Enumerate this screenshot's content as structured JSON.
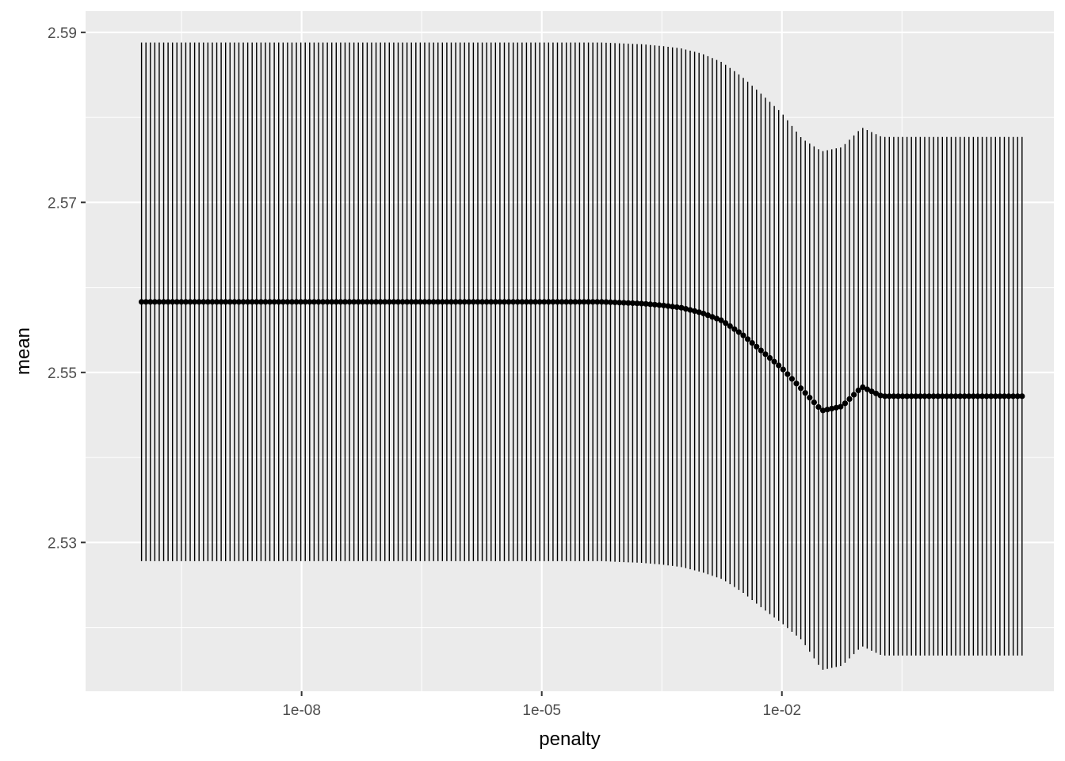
{
  "chart_data": {
    "type": "scatter",
    "title": "",
    "xlabel": "penalty",
    "ylabel": "mean",
    "x_scale": "log10",
    "xlim": [
      2e-11,
      25
    ],
    "ylim": [
      2.5125,
      2.5925
    ],
    "x_ticks": [
      {
        "value": 1e-08,
        "label": "1e-08"
      },
      {
        "value": 1e-05,
        "label": "1e-05"
      },
      {
        "value": 0.01,
        "label": "1e-02"
      }
    ],
    "y_ticks": [
      {
        "value": 2.53,
        "label": "2.53"
      },
      {
        "value": 2.55,
        "label": "2.55"
      },
      {
        "value": 2.57,
        "label": "2.57"
      },
      {
        "value": 2.59,
        "label": "2.59"
      }
    ],
    "grid": true,
    "point_color": "#000000",
    "errorbar_color": "#000000",
    "panel_background": "#ebebeb",
    "grid_color": "#ffffff",
    "series": [
      {
        "penalty": [
          1e-10,
          1.78e-10,
          3.16e-10,
          5.62e-10,
          1e-09,
          1.78e-09,
          3.16e-09,
          5.62e-09,
          1e-08,
          1.78e-08,
          3.16e-08,
          5.62e-08,
          1e-07,
          1.78e-07,
          3.16e-07,
          5.62e-07,
          1e-06,
          1.78e-06,
          3.16e-06,
          5.62e-06,
          1e-05,
          1.78e-05,
          3.16e-05,
          5.62e-05,
          0.0001,
          0.000178,
          0.000316,
          0.000562,
          0.001,
          0.00178,
          0.00316,
          0.00562,
          0.01,
          0.0178,
          0.0316,
          0.0562,
          0.1,
          0.178,
          0.316,
          0.562,
          1,
          1.78,
          3.16,
          5.62,
          10
        ],
        "mean": [
          2.5583,
          2.5583,
          2.5583,
          2.5583,
          2.5583,
          2.5583,
          2.5583,
          2.5583,
          2.5583,
          2.5583,
          2.5583,
          2.5583,
          2.5583,
          2.5583,
          2.5583,
          2.5583,
          2.5583,
          2.5583,
          2.5583,
          2.5583,
          2.5583,
          2.5583,
          2.5583,
          2.5583,
          2.5582,
          2.5581,
          2.5579,
          2.5576,
          2.557,
          2.5561,
          2.5545,
          2.5525,
          2.5505,
          2.548,
          2.5455,
          2.546,
          2.5483,
          2.5472,
          2.5472,
          2.5472,
          2.5472,
          2.5472,
          2.5472,
          2.5472,
          2.5472
        ],
        "std_err": [
          0.0305,
          0.0305,
          0.0305,
          0.0305,
          0.0305,
          0.0305,
          0.0305,
          0.0305,
          0.0305,
          0.0305,
          0.0305,
          0.0305,
          0.0305,
          0.0305,
          0.0305,
          0.0305,
          0.0305,
          0.0305,
          0.0305,
          0.0305,
          0.0305,
          0.0305,
          0.0305,
          0.0305,
          0.0305,
          0.0305,
          0.0305,
          0.0305,
          0.0305,
          0.0304,
          0.0303,
          0.0302,
          0.03,
          0.0295,
          0.0305,
          0.0305,
          0.0305,
          0.0305,
          0.0305,
          0.0305,
          0.0305,
          0.0305,
          0.0305,
          0.0305,
          0.0305
        ]
      }
    ]
  }
}
